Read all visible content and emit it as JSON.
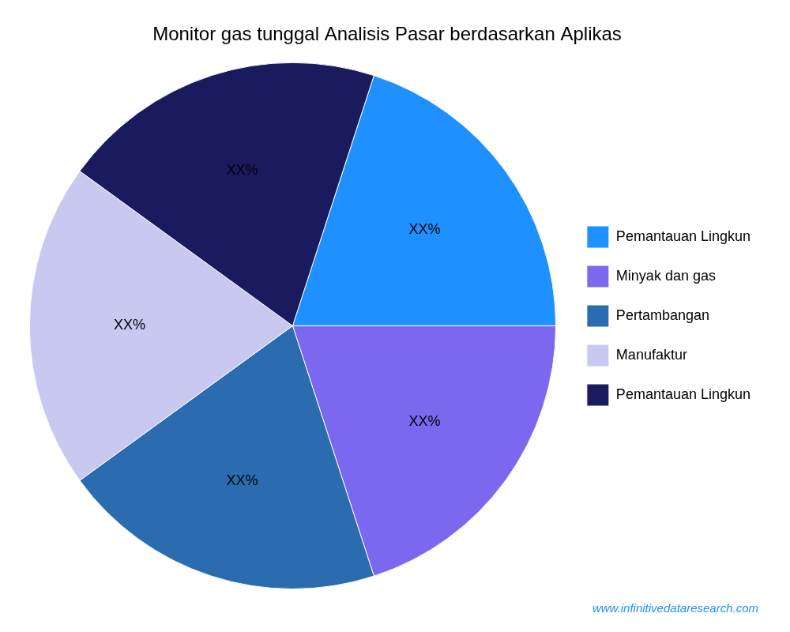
{
  "chart_data": {
    "type": "pie",
    "title": "Monitor gas tunggal Analisis Pasar berdasarkan Aplikas",
    "categories": [
      "Pemantauan Lingkun",
      "Minyak dan gas",
      "Pertambangan",
      "Manufaktur",
      "Pemantauan Lingkun"
    ],
    "values": [
      20,
      20,
      20,
      20,
      20
    ],
    "value_labels": [
      "XX%",
      "XX%",
      "XX%",
      "XX%",
      "XX%"
    ],
    "colors": [
      "#1E90FF",
      "#7B68EE",
      "#2B6CB0",
      "#C8C8F0",
      "#1A1A5E"
    ],
    "data_labels": true,
    "legend": "right",
    "annotations": [
      {
        "text": "www.infinitivedataresearch.com",
        "color": "#1E90FF"
      }
    ]
  }
}
